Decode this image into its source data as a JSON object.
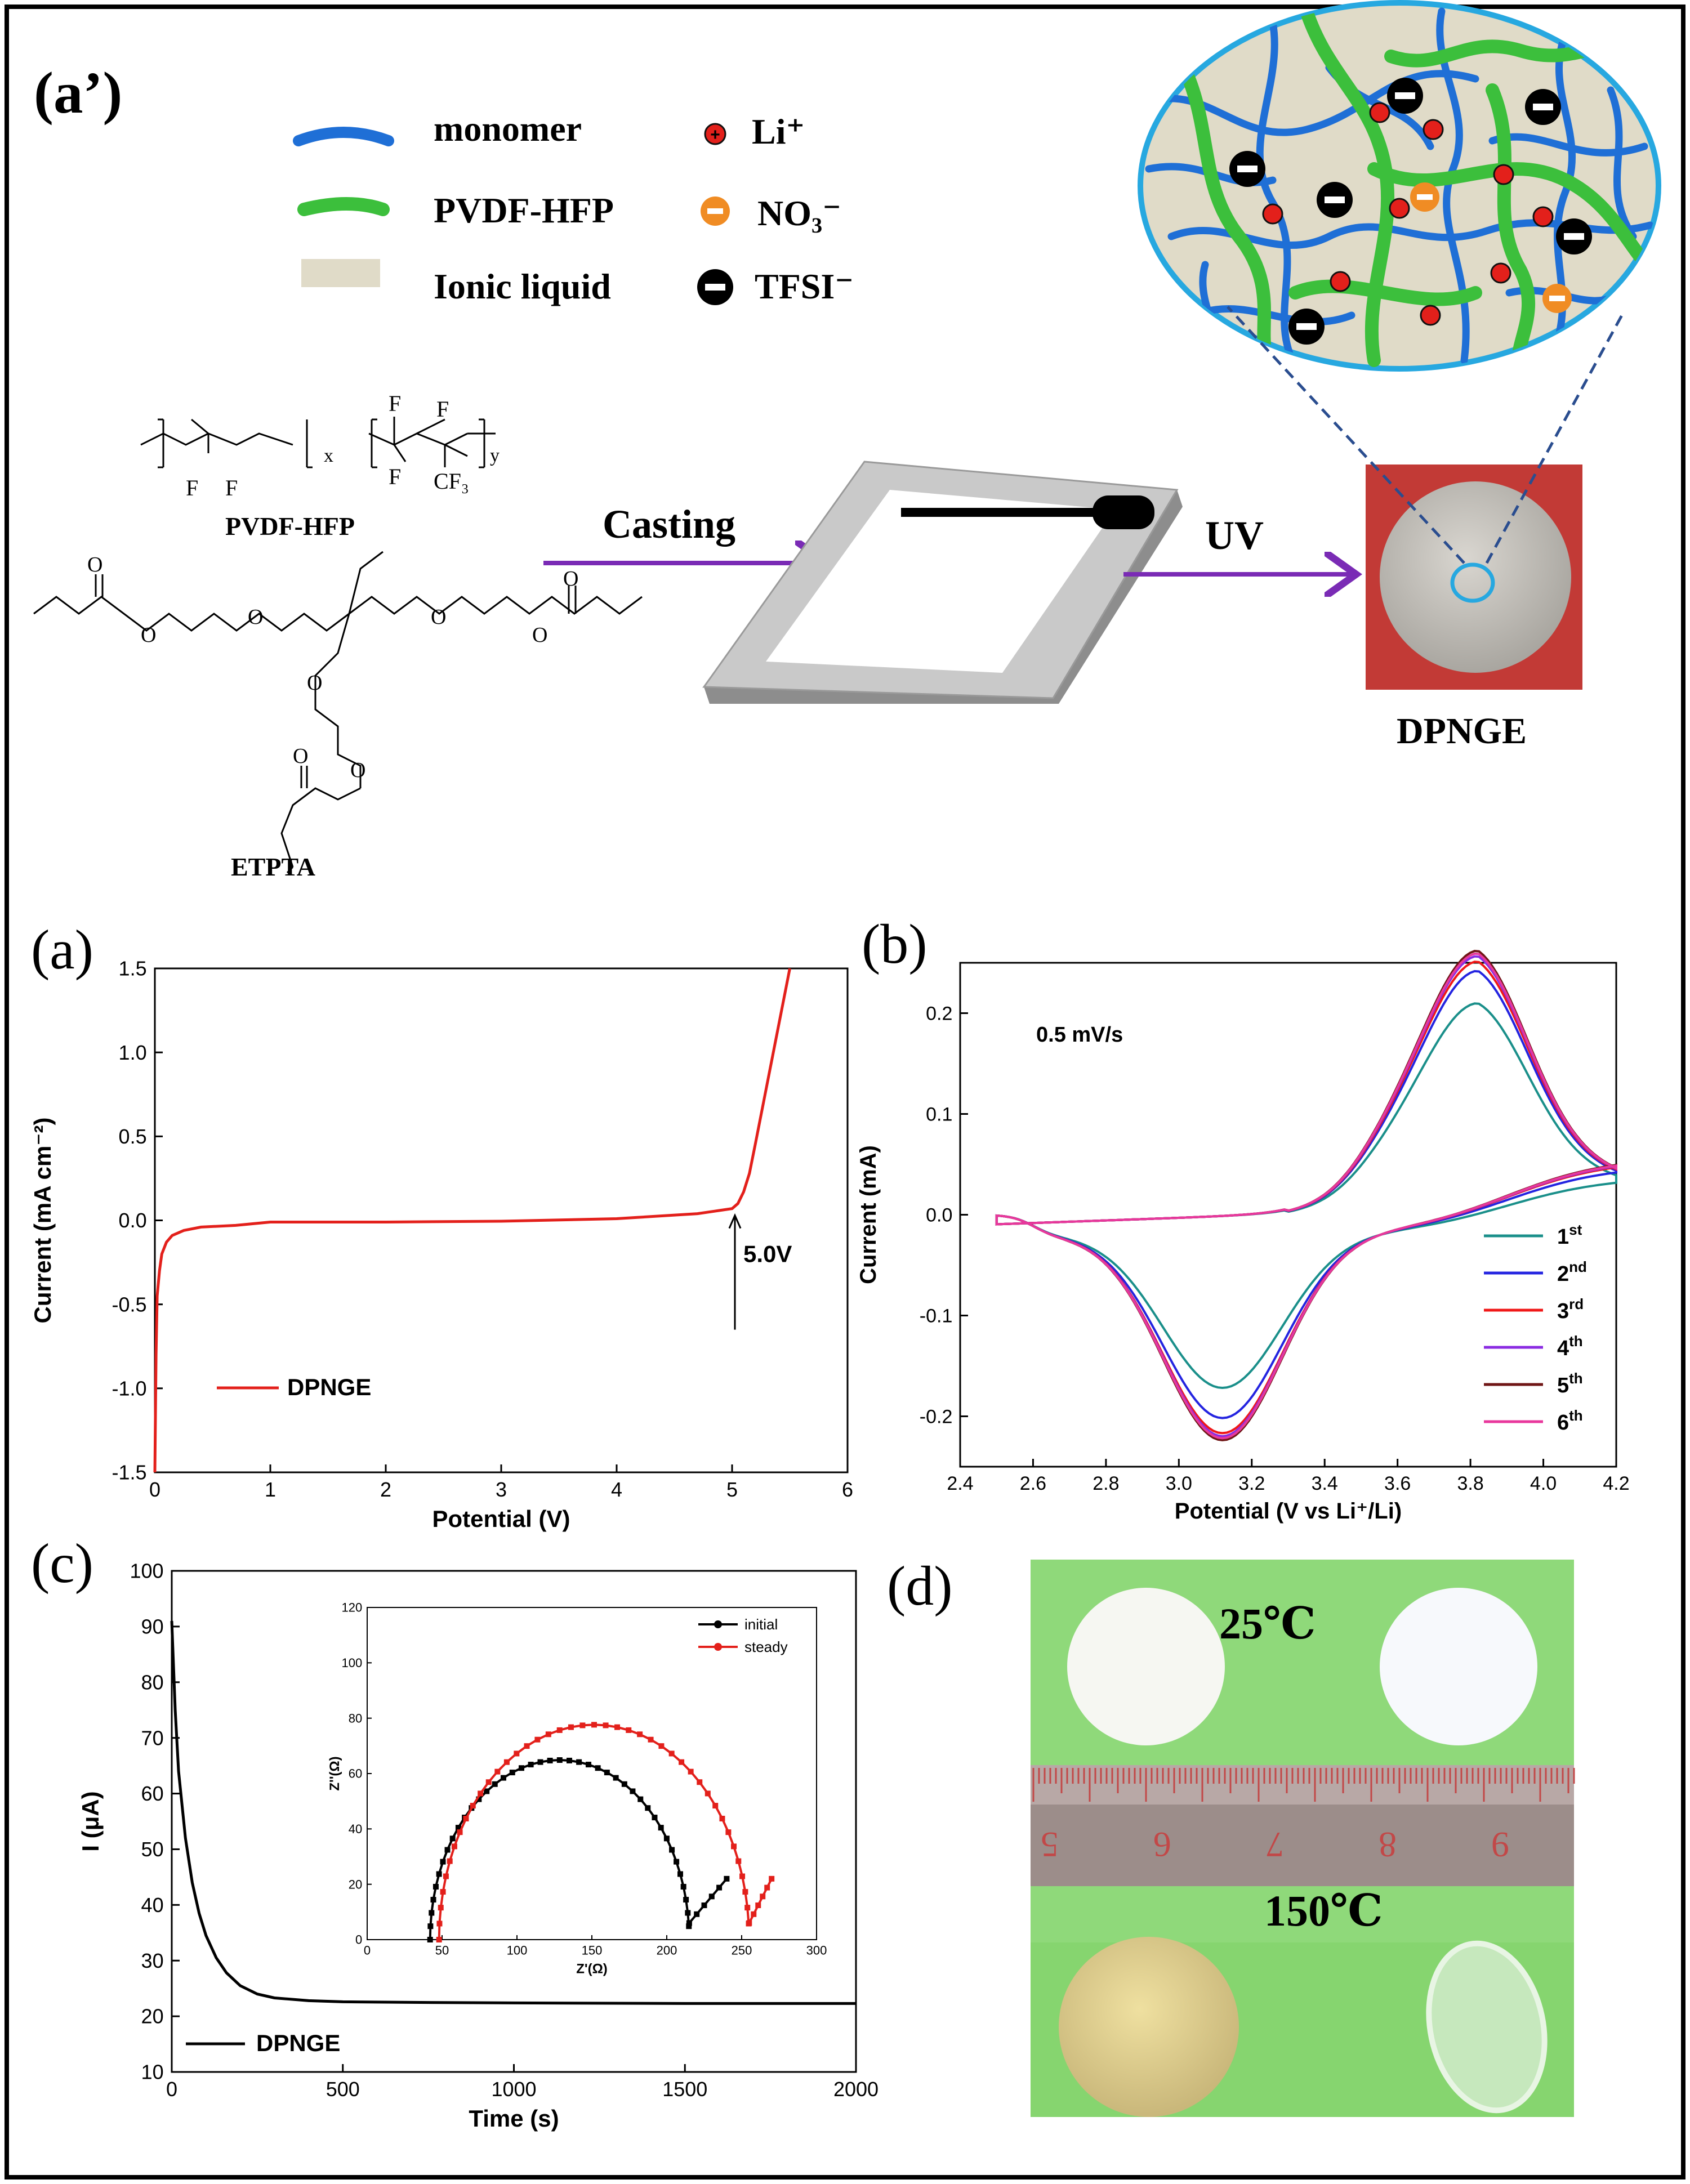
{
  "panel_labels": {
    "a_prime": "(a’)",
    "a": "(a)",
    "b": "(b)",
    "c": "(c)",
    "d": "(d)"
  },
  "legend_top": {
    "monomer": "monomer",
    "pvdf": "PVDF-HFP",
    "ionic": "Ionic liquid",
    "li": "Li⁺",
    "no3": "NO₃⁻",
    "tfsi": "TFSI⁻"
  },
  "colors": {
    "monomer_blue": "#1f6fd6",
    "pvdf_green": "#3cbf3c",
    "ionic_beige": "#e0dbc8",
    "li_red": "#e3201b",
    "no3_orange": "#f08c24",
    "arrow_purple": "#7a2bb5",
    "zoom_circle": "#27a8e0",
    "dpnge_bg": "#c23a36",
    "photo_green": "#8fd97a"
  },
  "schematic": {
    "pvdf_formula_label": "PVDF-HFP",
    "etpta_label": "ETPTA",
    "atom_f": "F",
    "atom_o": "O",
    "cf3": "CF₃",
    "sub_x": "x",
    "sub_y": "y",
    "casting": "Casting",
    "uv": "UV",
    "dpnge": "DPNGE"
  },
  "chart_data": [
    {
      "panel": "a",
      "type": "line",
      "xlabel": "Potential (V)",
      "ylabel": "Current (mA cm⁻²)",
      "xlim": [
        0,
        6
      ],
      "ylim": [
        -1.5,
        1.5
      ],
      "xticks": [
        0,
        1,
        2,
        3,
        4,
        5,
        6
      ],
      "yticks": [
        -1.5,
        -1.0,
        -0.5,
        0.0,
        0.5,
        1.0,
        1.5
      ],
      "grid": false,
      "legend_position": "bottom-left",
      "series": [
        {
          "name": "DPNGE",
          "color": "#e3201b",
          "x": [
            0.0,
            0.01,
            0.02,
            0.04,
            0.06,
            0.1,
            0.15,
            0.25,
            0.4,
            0.7,
            1.0,
            1.5,
            2.0,
            3.0,
            4.0,
            4.7,
            4.9,
            5.0,
            5.05,
            5.1,
            5.15,
            5.2,
            5.3,
            5.4,
            5.5
          ],
          "y": [
            -1.5,
            -0.8,
            -0.45,
            -0.3,
            -0.2,
            -0.13,
            -0.09,
            -0.06,
            -0.04,
            -0.03,
            -0.01,
            -0.01,
            -0.01,
            -0.005,
            0.01,
            0.04,
            0.06,
            0.07,
            0.1,
            0.17,
            0.28,
            0.45,
            0.8,
            1.15,
            1.5
          ]
        }
      ],
      "annotations": [
        {
          "text": "5.0V",
          "x": 5.0,
          "y": 0.07
        }
      ]
    },
    {
      "panel": "b",
      "type": "line",
      "xlabel": "Potential (V vs Li⁺/Li)",
      "ylabel": "Current (mA)",
      "xlim": [
        2.4,
        4.2
      ],
      "ylim": [
        -0.25,
        0.25
      ],
      "xticks": [
        2.4,
        2.6,
        2.8,
        3.0,
        3.2,
        3.4,
        3.6,
        3.8,
        4.0,
        4.2
      ],
      "yticks": [
        -0.2,
        -0.1,
        0.0,
        0.1,
        0.2
      ],
      "grid": false,
      "legend_position": "bottom-right",
      "scan_rate": "0.5 mV/s",
      "series": [
        {
          "name": "1st",
          "label_main": "1",
          "label_sup": "st",
          "color": "#1a8f8a",
          "ox_peak": 0.153,
          "red_peak": -0.152
        },
        {
          "name": "2nd",
          "label_main": "2",
          "label_sup": "nd",
          "color": "#2424e0",
          "ox_peak": 0.177,
          "red_peak": -0.182
        },
        {
          "name": "3rd",
          "label_main": "3",
          "label_sup": "rd",
          "color": "#f01818",
          "ox_peak": 0.184,
          "red_peak": -0.197
        },
        {
          "name": "4th",
          "label_main": "4",
          "label_sup": "th",
          "color": "#8a2be2",
          "ox_peak": 0.188,
          "red_peak": -0.2
        },
        {
          "name": "5th",
          "label_main": "5",
          "label_sup": "th",
          "color": "#701616",
          "ox_peak": 0.192,
          "red_peak": -0.204
        },
        {
          "name": "6th",
          "label_main": "6",
          "label_sup": "th",
          "color": "#e8389c",
          "ox_peak": 0.19,
          "red_peak": -0.202
        }
      ],
      "ox_peak_potential": 3.82,
      "red_peak_potential": 3.12
    },
    {
      "panel": "c",
      "type": "line",
      "xlabel": "Time (s)",
      "ylabel": "I (μA)",
      "xlim": [
        0,
        2000
      ],
      "ylim": [
        10,
        100
      ],
      "xticks": [
        0,
        500,
        1000,
        1500,
        2000
      ],
      "yticks": [
        10,
        20,
        30,
        40,
        50,
        60,
        70,
        80,
        90,
        100
      ],
      "grid": false,
      "legend_position": "bottom-left",
      "series": [
        {
          "name": "DPNGE",
          "color": "#000000",
          "x": [
            0,
            10,
            20,
            40,
            60,
            80,
            100,
            130,
            160,
            200,
            250,
            300,
            400,
            500,
            700,
            1000,
            1500,
            2000
          ],
          "y": [
            91,
            75,
            64,
            52,
            44,
            38.5,
            34.5,
            30.5,
            27.8,
            25.5,
            24.0,
            23.3,
            22.8,
            22.6,
            22.5,
            22.4,
            22.3,
            22.3
          ]
        }
      ]
    },
    {
      "panel": "c-inset",
      "type": "scatter",
      "xlabel": "Z'(Ω)",
      "ylabel": "Z''(Ω)",
      "xlim": [
        0,
        300
      ],
      "ylim": [
        0,
        120
      ],
      "xticks": [
        0,
        50,
        100,
        150,
        200,
        250,
        300
      ],
      "yticks": [
        0,
        20,
        40,
        60,
        80,
        100,
        120
      ],
      "grid": false,
      "legend_position": "top-right",
      "series": [
        {
          "name": "initial",
          "color": "#000000",
          "x0": 42,
          "x1": 215,
          "tail_end_x": 240,
          "tail_end_y": 22,
          "min_y": 6
        },
        {
          "name": "steady",
          "color": "#e3201b",
          "x0": 48,
          "x1": 255,
          "tail_end_x": 270,
          "tail_end_y": 22,
          "min_y": 6
        }
      ]
    }
  ],
  "photo_d": {
    "temp_top": "25℃",
    "temp_bottom": "150℃",
    "ruler_numbers": [
      "5",
      "6",
      "7",
      "8",
      "9"
    ]
  }
}
